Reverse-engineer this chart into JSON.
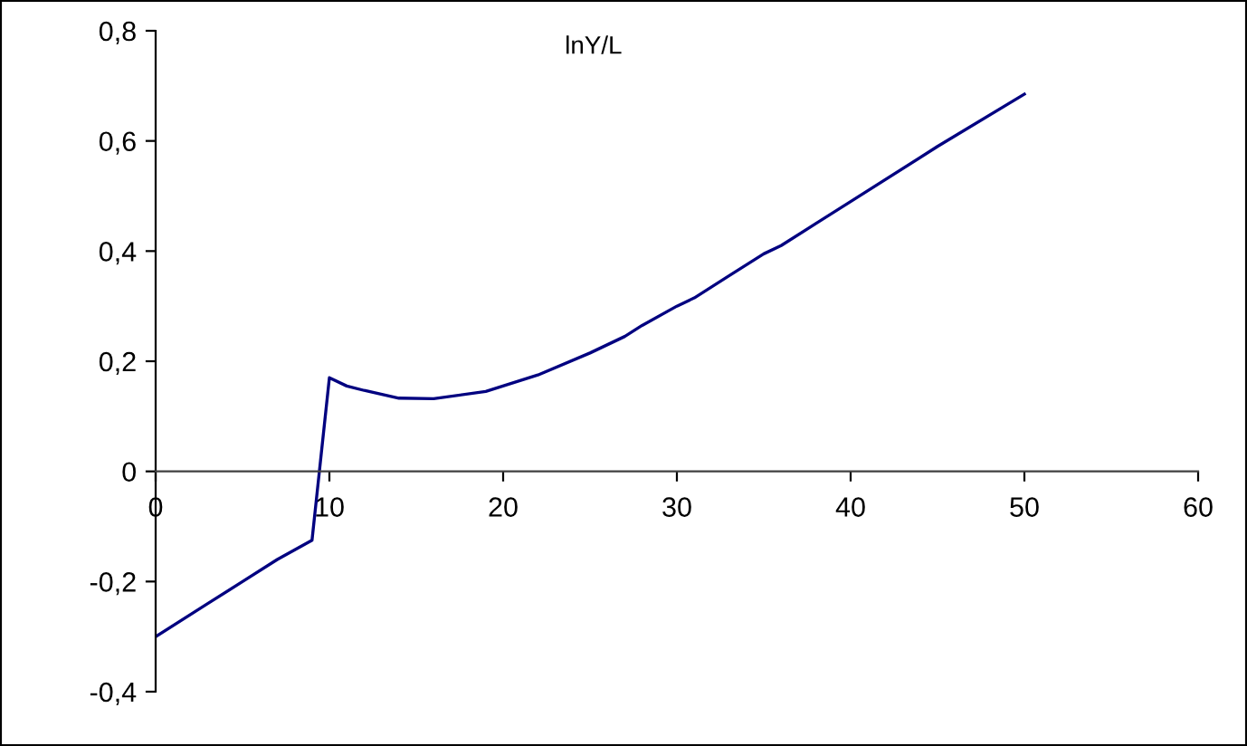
{
  "chart_data": {
    "type": "line",
    "title": "lnY/L",
    "x": [
      0,
      3,
      5,
      7,
      9,
      10,
      11,
      12,
      14,
      16,
      19,
      22,
      25,
      27,
      28,
      30,
      31,
      33,
      35,
      36,
      38,
      40,
      45,
      50
    ],
    "series": [
      {
        "color": "#000080",
        "values": [
          -0.3,
          -0.24,
          -0.2,
          -0.16,
          -0.125,
          0.17,
          0.155,
          0.147,
          0.133,
          0.132,
          0.145,
          0.175,
          0.215,
          0.245,
          0.265,
          0.3,
          0.315,
          0.355,
          0.395,
          0.41,
          0.45,
          0.49,
          0.59,
          0.685
        ]
      }
    ],
    "xlim": [
      0,
      60
    ],
    "xticks": [
      0,
      10,
      20,
      30,
      40,
      50,
      60
    ],
    "ylim": [
      -0.4,
      0.8
    ],
    "yticks": [
      {
        "value": -0.4,
        "label": "-0,4"
      },
      {
        "value": -0.2,
        "label": "-0,2"
      },
      {
        "value": 0,
        "label": "0"
      },
      {
        "value": 0.2,
        "label": "0,2"
      },
      {
        "value": 0.4,
        "label": "0,4"
      },
      {
        "value": 0.6,
        "label": "0,6"
      },
      {
        "value": 0.8,
        "label": "0,8"
      }
    ],
    "marker": "none",
    "line_style": "solid"
  }
}
